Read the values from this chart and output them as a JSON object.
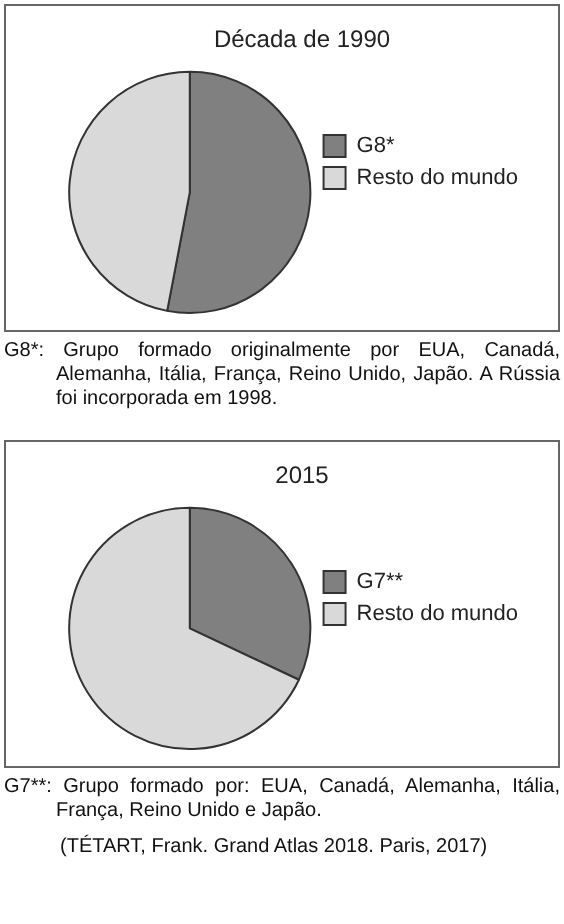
{
  "chart_data": [
    {
      "type": "pie",
      "title": "Década de 1990",
      "categories": [
        "G8*",
        "Resto do mundo"
      ],
      "values": [
        53,
        47
      ],
      "colors": [
        "#808080",
        "#d9d9d9"
      ],
      "legend": "right",
      "annotations": [
        "G8*: Grupo formado originalmente por EUA, Canadá, Alemanha, Itália, França, Reino Unido, Japão. A Rússia foi incorporada em 1998."
      ]
    },
    {
      "type": "pie",
      "title": "2015",
      "categories": [
        "G7**",
        "Resto do mundo"
      ],
      "values": [
        32,
        68
      ],
      "colors": [
        "#808080",
        "#d9d9d9"
      ],
      "legend": "right",
      "annotations": [
        "G7**: Grupo formado por: EUA, Canadá, Alemanha, Itália, França, Reino Unido e Japão.",
        "(TÉTART, Frank. Grand Atlas 2018. Paris, 2017)"
      ]
    }
  ]
}
